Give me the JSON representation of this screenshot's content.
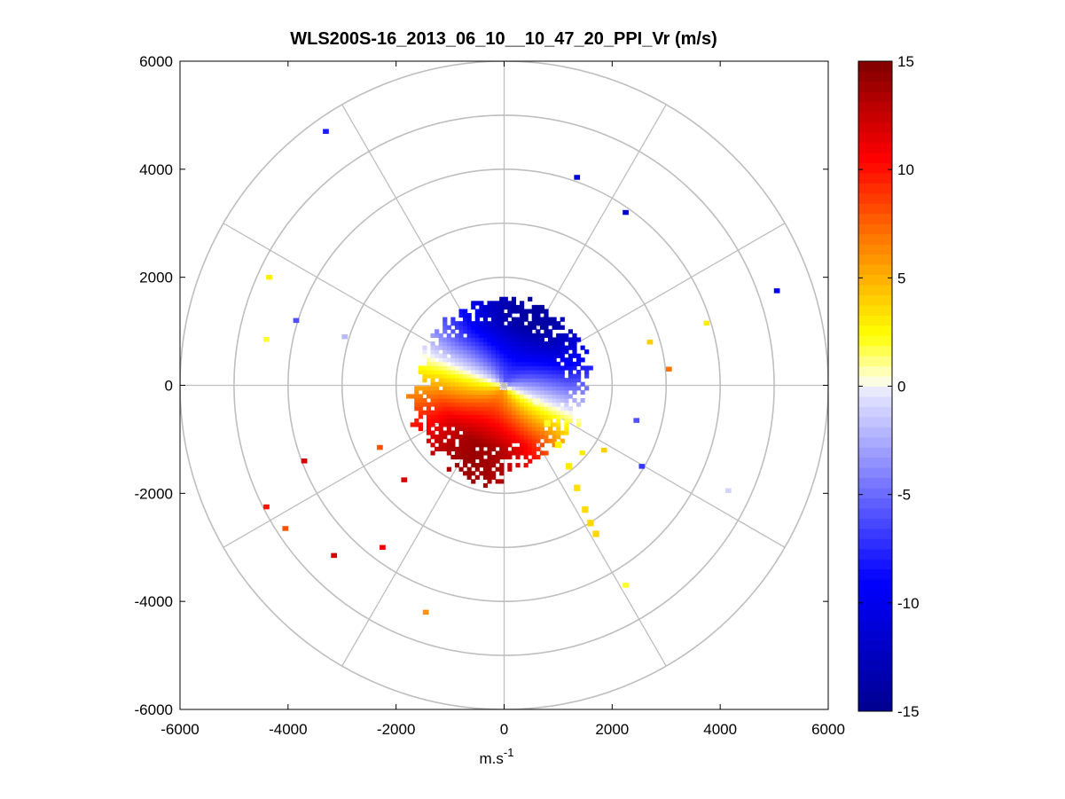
{
  "chart_data": {
    "type": "heatmap",
    "subtype": "polar-ppi-scan",
    "title": "WLS200S-16_2013_06_10__10_47_20_PPI_Vr (m/s)",
    "xlabel_base": "m.s",
    "xlabel_exponent": "-1",
    "ylabel": "",
    "xlim": [
      -6000,
      6000
    ],
    "ylim": [
      -6000,
      6000
    ],
    "xticks": [
      -6000,
      -4000,
      -2000,
      0,
      2000,
      4000,
      6000
    ],
    "yticks": [
      6000,
      4000,
      2000,
      0,
      -2000,
      -4000,
      -6000
    ],
    "xtick_labels": [
      "-6000",
      "-4000",
      "-2000",
      "0",
      "2000",
      "4000",
      "6000"
    ],
    "ytick_labels": [
      "6000",
      "4000",
      "2000",
      "0",
      "-2000",
      "-4000",
      "-6000"
    ],
    "polar_grid": {
      "ring_radii": [
        1000,
        2000,
        3000,
        4000,
        5000,
        6000
      ],
      "spoke_angles_deg": [
        0,
        30,
        60,
        90,
        120,
        150,
        180,
        210,
        240,
        270,
        300,
        330
      ],
      "grid": true,
      "grid_color": "#bebebe"
    },
    "colorbar": {
      "range": [
        -15,
        15
      ],
      "ticks": [
        15,
        10,
        5,
        0,
        -5,
        -10,
        -15
      ],
      "tick_labels": [
        "15",
        "10",
        "5",
        "0",
        "-5",
        "-10",
        "-15"
      ],
      "colormap": "blue-white-yellow-red diverging",
      "stops": [
        "#00008f",
        "#0000ff",
        "#e6e6ff",
        "#ffffe0",
        "#ffff00",
        "#ff8000",
        "#ff0000",
        "#800000"
      ]
    },
    "radial_velocity_field": {
      "description": "dense near-field returns (range up to ~2000 m); receding (positive, red) to the south-southwest, approaching (negative, blue) to the north; zero-velocity line oriented roughly WNW-ESE",
      "max_range_m": 2000,
      "peak_velocity_ms": 14,
      "zero_line_bearing_deg": 112
    },
    "scatter_points": [
      {
        "x": -3300,
        "y": 4700,
        "v": -8
      },
      {
        "x": 1350,
        "y": 3850,
        "v": -12
      },
      {
        "x": 2250,
        "y": 3200,
        "v": -12
      },
      {
        "x": 5050,
        "y": 1750,
        "v": -10
      },
      {
        "x": -4350,
        "y": 2000,
        "v": 3
      },
      {
        "x": -3850,
        "y": 1200,
        "v": -6
      },
      {
        "x": -4400,
        "y": 850,
        "v": 2
      },
      {
        "x": -2950,
        "y": 900,
        "v": -2
      },
      {
        "x": 3750,
        "y": 1150,
        "v": 3
      },
      {
        "x": 2700,
        "y": 800,
        "v": 4
      },
      {
        "x": 3050,
        "y": 300,
        "v": 7
      },
      {
        "x": 2450,
        "y": -650,
        "v": -6
      },
      {
        "x": 2550,
        "y": -1500,
        "v": -7
      },
      {
        "x": 4150,
        "y": -1950,
        "v": -1
      },
      {
        "x": -2300,
        "y": -1150,
        "v": 8
      },
      {
        "x": -3700,
        "y": -1400,
        "v": 12
      },
      {
        "x": -1850,
        "y": -1750,
        "v": 12
      },
      {
        "x": -4400,
        "y": -2250,
        "v": 10
      },
      {
        "x": -4050,
        "y": -2650,
        "v": 8
      },
      {
        "x": -3150,
        "y": -3150,
        "v": 12
      },
      {
        "x": -2250,
        "y": -3000,
        "v": 11
      },
      {
        "x": -1450,
        "y": -4200,
        "v": 6
      },
      {
        "x": 2250,
        "y": -3700,
        "v": 2
      },
      {
        "x": 1850,
        "y": -1200,
        "v": 4
      },
      {
        "x": 1450,
        "y": -1250,
        "v": 3
      }
    ]
  }
}
